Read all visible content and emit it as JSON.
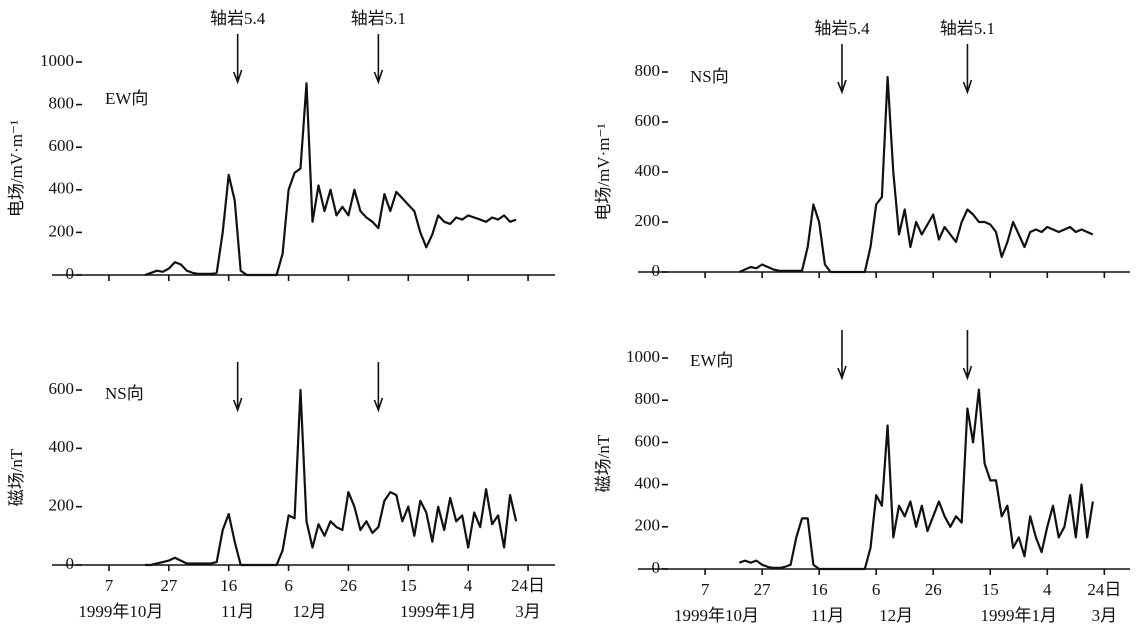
{
  "chart_data": [
    {
      "type": "line",
      "ylabel": "电场/mV·m⁻¹",
      "events": [
        {
          "x": 43,
          "label": "轴岩5.4"
        },
        {
          "x": 90,
          "label": "轴岩5.1"
        }
      ],
      "xlim": [
        -9,
        149
      ],
      "xticks": [
        0,
        20,
        40,
        60,
        80,
        100,
        120,
        140
      ],
      "ylim": [
        0,
        1000
      ],
      "yticks": [
        0,
        200,
        400,
        600,
        800,
        1000
      ],
      "x": [
        12,
        14,
        16,
        18,
        20,
        22,
        24,
        26,
        28,
        30,
        32,
        34,
        36,
        38,
        40,
        42,
        44,
        46,
        48,
        50,
        52,
        54,
        56,
        58,
        60,
        62,
        64,
        66,
        68,
        70,
        72,
        74,
        76,
        78,
        80,
        82,
        84,
        86,
        88,
        90,
        92,
        94,
        96,
        98,
        100,
        102,
        104,
        106,
        108,
        110,
        112,
        114,
        116,
        118,
        120,
        122,
        124,
        126,
        128,
        130,
        132,
        134,
        136
      ],
      "series": [
        {
          "name": "EW向",
          "color": "#111111",
          "values": [
            0,
            10,
            20,
            15,
            30,
            60,
            50,
            20,
            10,
            5,
            5,
            5,
            10,
            200,
            470,
            350,
            20,
            0,
            0,
            0,
            0,
            0,
            0,
            100,
            400,
            480,
            500,
            900,
            250,
            420,
            300,
            400,
            280,
            320,
            280,
            400,
            300,
            270,
            250,
            220,
            380,
            300,
            390,
            360,
            330,
            300,
            200,
            130,
            190,
            280,
            250,
            240,
            270,
            260,
            280,
            270,
            260,
            250,
            270,
            260,
            280,
            250,
            260
          ]
        }
      ]
    },
    {
      "type": "line",
      "ylabel": "电场/mV·m⁻¹",
      "events": [
        {
          "x": 48,
          "label": "轴岩5.4"
        },
        {
          "x": 92,
          "label": "轴岩5.1"
        }
      ],
      "xlim": [
        -13,
        149
      ],
      "xticks": [
        0,
        20,
        40,
        60,
        80,
        100,
        120,
        140
      ],
      "ylim": [
        0,
        800
      ],
      "yticks": [
        0,
        200,
        400,
        600,
        800
      ],
      "x": [
        12,
        14,
        16,
        18,
        20,
        22,
        24,
        26,
        28,
        30,
        32,
        34,
        36,
        38,
        40,
        42,
        44,
        46,
        48,
        50,
        52,
        54,
        56,
        58,
        60,
        62,
        64,
        66,
        68,
        70,
        72,
        74,
        76,
        78,
        80,
        82,
        84,
        86,
        88,
        90,
        92,
        94,
        96,
        98,
        100,
        102,
        104,
        106,
        108,
        110,
        112,
        114,
        116,
        118,
        120,
        122,
        124,
        126,
        128,
        130,
        132,
        134,
        136
      ],
      "series": [
        {
          "name": "NS向",
          "color": "#111111",
          "values": [
            0,
            10,
            20,
            15,
            30,
            20,
            10,
            5,
            5,
            5,
            5,
            5,
            100,
            270,
            200,
            30,
            0,
            0,
            0,
            0,
            0,
            0,
            0,
            100,
            270,
            300,
            780,
            400,
            150,
            250,
            100,
            200,
            150,
            190,
            230,
            130,
            180,
            150,
            120,
            200,
            250,
            230,
            200,
            200,
            190,
            160,
            60,
            120,
            200,
            150,
            100,
            160,
            170,
            160,
            180,
            170,
            160,
            170,
            180,
            160,
            170,
            160,
            150
          ]
        }
      ]
    },
    {
      "type": "line",
      "ylabel": "磁场/nT",
      "events": [
        {
          "x": 43
        },
        {
          "x": 90
        }
      ],
      "xlim": [
        -9,
        149
      ],
      "xticks": [
        {
          "value": 0,
          "label": "7"
        },
        {
          "value": 20,
          "label": "27"
        },
        {
          "value": 40,
          "label": "16"
        },
        {
          "value": 60,
          "label": "6"
        },
        {
          "value": 80,
          "label": "26"
        },
        {
          "value": 100,
          "label": "15"
        },
        {
          "value": 120,
          "label": "4"
        },
        {
          "value": 140,
          "label": "24日"
        }
      ],
      "month_labels": [
        {
          "value": 4,
          "label": "1999年10月"
        },
        {
          "value": 43,
          "label": "11月"
        },
        {
          "value": 67,
          "label": "12月"
        },
        {
          "value": 110,
          "label": "1999年1月"
        },
        {
          "value": 140,
          "label": "3月"
        }
      ],
      "ylim": [
        0,
        600
      ],
      "yticks": [
        0,
        200,
        400,
        600
      ],
      "x": [
        12,
        14,
        16,
        18,
        20,
        22,
        24,
        26,
        28,
        30,
        32,
        34,
        36,
        38,
        40,
        42,
        44,
        46,
        48,
        50,
        52,
        54,
        56,
        58,
        60,
        62,
        64,
        66,
        68,
        70,
        72,
        74,
        76,
        78,
        80,
        82,
        84,
        86,
        88,
        90,
        92,
        94,
        96,
        98,
        100,
        102,
        104,
        106,
        108,
        110,
        112,
        114,
        116,
        118,
        120,
        122,
        124,
        126,
        128,
        130,
        132,
        134,
        136
      ],
      "series": [
        {
          "name": "NS向",
          "color": "#111111",
          "values": [
            0,
            0,
            5,
            10,
            15,
            25,
            15,
            5,
            5,
            5,
            5,
            5,
            10,
            120,
            175,
            80,
            0,
            0,
            0,
            0,
            0,
            0,
            0,
            50,
            170,
            160,
            600,
            150,
            60,
            140,
            100,
            150,
            130,
            120,
            250,
            200,
            120,
            150,
            110,
            130,
            220,
            250,
            240,
            150,
            200,
            100,
            220,
            180,
            80,
            200,
            120,
            230,
            150,
            170,
            60,
            180,
            130,
            260,
            140,
            170,
            60,
            240,
            150
          ]
        }
      ]
    },
    {
      "type": "line",
      "ylabel": "磁场/nT",
      "events": [
        {
          "x": 48
        },
        {
          "x": 92
        }
      ],
      "xlim": [
        -13,
        149
      ],
      "xticks": [
        {
          "value": 0,
          "label": "7"
        },
        {
          "value": 20,
          "label": "27"
        },
        {
          "value": 40,
          "label": "16"
        },
        {
          "value": 60,
          "label": "6"
        },
        {
          "value": 80,
          "label": "26"
        },
        {
          "value": 100,
          "label": "15"
        },
        {
          "value": 120,
          "label": "4"
        },
        {
          "value": 140,
          "label": "24日"
        }
      ],
      "month_labels": [
        {
          "value": 4,
          "label": "1999年10月"
        },
        {
          "value": 43,
          "label": "11月"
        },
        {
          "value": 67,
          "label": "12月"
        },
        {
          "value": 110,
          "label": "1999年1月"
        },
        {
          "value": 140,
          "label": "3月"
        }
      ],
      "ylim": [
        0,
        1000
      ],
      "yticks": [
        0,
        200,
        400,
        600,
        800,
        1000
      ],
      "x": [
        12,
        14,
        16,
        18,
        20,
        22,
        24,
        26,
        28,
        30,
        32,
        34,
        36,
        38,
        40,
        42,
        44,
        46,
        48,
        50,
        52,
        54,
        56,
        58,
        60,
        62,
        64,
        66,
        68,
        70,
        72,
        74,
        76,
        78,
        80,
        82,
        84,
        86,
        88,
        90,
        92,
        94,
        96,
        98,
        100,
        102,
        104,
        106,
        108,
        110,
        112,
        114,
        116,
        118,
        120,
        122,
        124,
        126,
        128,
        130,
        132,
        134,
        136
      ],
      "series": [
        {
          "name": "EW向",
          "color": "#111111",
          "values": [
            30,
            40,
            30,
            40,
            20,
            10,
            5,
            5,
            10,
            20,
            150,
            240,
            240,
            20,
            0,
            0,
            0,
            0,
            0,
            0,
            0,
            0,
            0,
            100,
            350,
            300,
            680,
            150,
            300,
            250,
            320,
            200,
            300,
            180,
            250,
            320,
            250,
            200,
            250,
            220,
            760,
            600,
            850,
            500,
            420,
            420,
            250,
            300,
            100,
            150,
            60,
            250,
            150,
            80,
            200,
            300,
            150,
            200,
            350,
            150,
            400,
            150,
            320
          ]
        }
      ]
    }
  ]
}
